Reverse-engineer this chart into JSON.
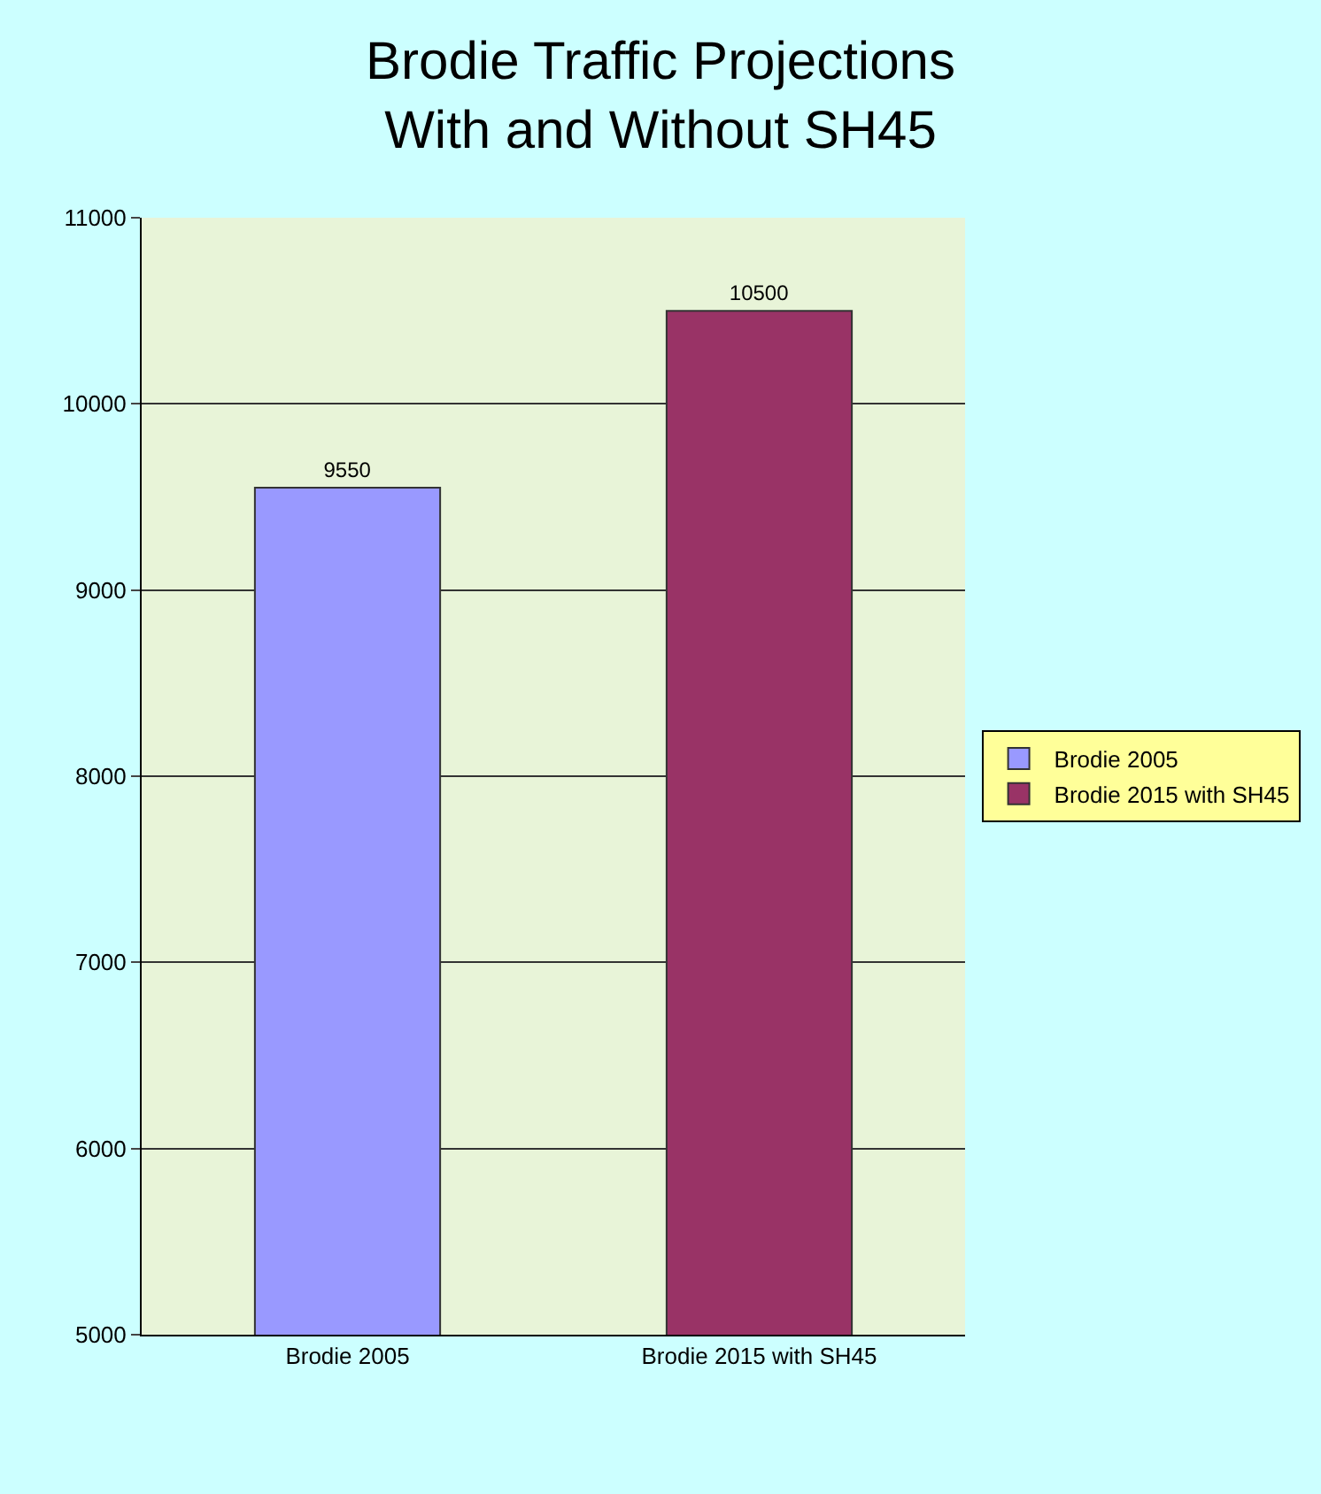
{
  "chart_data": {
    "type": "bar",
    "title": "Brodie Traffic Projections\nWith and Without SH45",
    "categories": [
      "Brodie 2005",
      "Brodie 2015 with SH45"
    ],
    "series": [
      {
        "name": "Brodie 2005",
        "color": "#9999ff",
        "values": [
          9550,
          null
        ]
      },
      {
        "name": "Brodie 2015 with SH45",
        "color": "#993366",
        "values": [
          null,
          10500
        ]
      }
    ],
    "ylim": [
      5000,
      11000
    ],
    "yticks": [
      5000,
      6000,
      7000,
      8000,
      9000,
      10000,
      11000
    ],
    "grid": "y",
    "legend": "right",
    "data_labels": true
  }
}
